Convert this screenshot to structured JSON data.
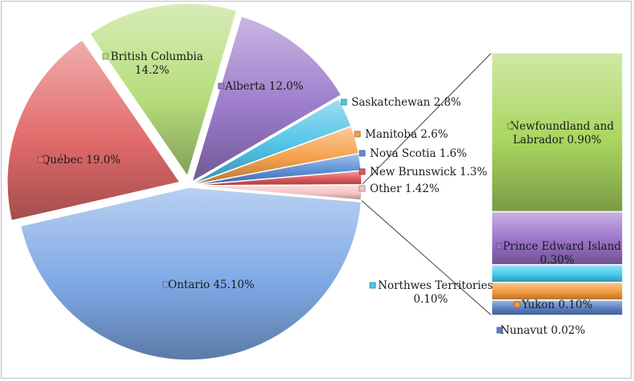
{
  "chart_data": {
    "type": "bar-of-pie",
    "pie": {
      "slices": [
        {
          "label": "Ontario 45.10%",
          "name": "Ontario",
          "value": 45.1,
          "color": "#7fa9e6"
        },
        {
          "label": "Québec 19.0%",
          "name": "Québec",
          "value": 19.0,
          "color": "#e26b6b"
        },
        {
          "label": "British Columbia\n14.2%",
          "name": "British Columbia",
          "value": 14.2,
          "color": "#b6dd7c"
        },
        {
          "label": "Alberta 12.0%",
          "name": "Alberta",
          "value": 12.0,
          "color": "#9c7ccb"
        },
        {
          "label": "Saskatchewan 2.8%",
          "name": "Saskatchewan",
          "value": 2.8,
          "color": "#4fc3e6"
        },
        {
          "label": "Manitoba 2.6%",
          "name": "Manitoba",
          "value": 2.6,
          "color": "#f5a04a"
        },
        {
          "label": "Nova Scotia 1.6%",
          "name": "Nova Scotia",
          "value": 1.6,
          "color": "#5b8fd6"
        },
        {
          "label": "New Brunswick 1.3%",
          "name": "New Brunswick",
          "value": 1.3,
          "color": "#e05858"
        },
        {
          "label": "Other 1.42%",
          "name": "Other",
          "value": 1.42,
          "color": "#f4c4c4"
        }
      ]
    },
    "bar": {
      "segments": [
        {
          "label": "Newfoundland and\nLabrador 0.90%",
          "name": "Newfoundland and Labrador",
          "value": 0.9,
          "color": "#a9d65f"
        },
        {
          "label": "Prince Edward Island\n0.30%",
          "name": "Prince Edward Island",
          "value": 0.3,
          "color": "#9b72c9"
        },
        {
          "label": "Northwes Territories\n0.10%",
          "name": "Northwes Territories",
          "value": 0.1,
          "color": "#44cbec"
        },
        {
          "label": "Yukon  0.10%",
          "name": "Yukon",
          "value": 0.1,
          "color": "#f49a3e"
        },
        {
          "label": "Nunavut 0.02%",
          "name": "Nunavut",
          "value": 0.02,
          "color": "#5a7fc2"
        }
      ]
    }
  }
}
